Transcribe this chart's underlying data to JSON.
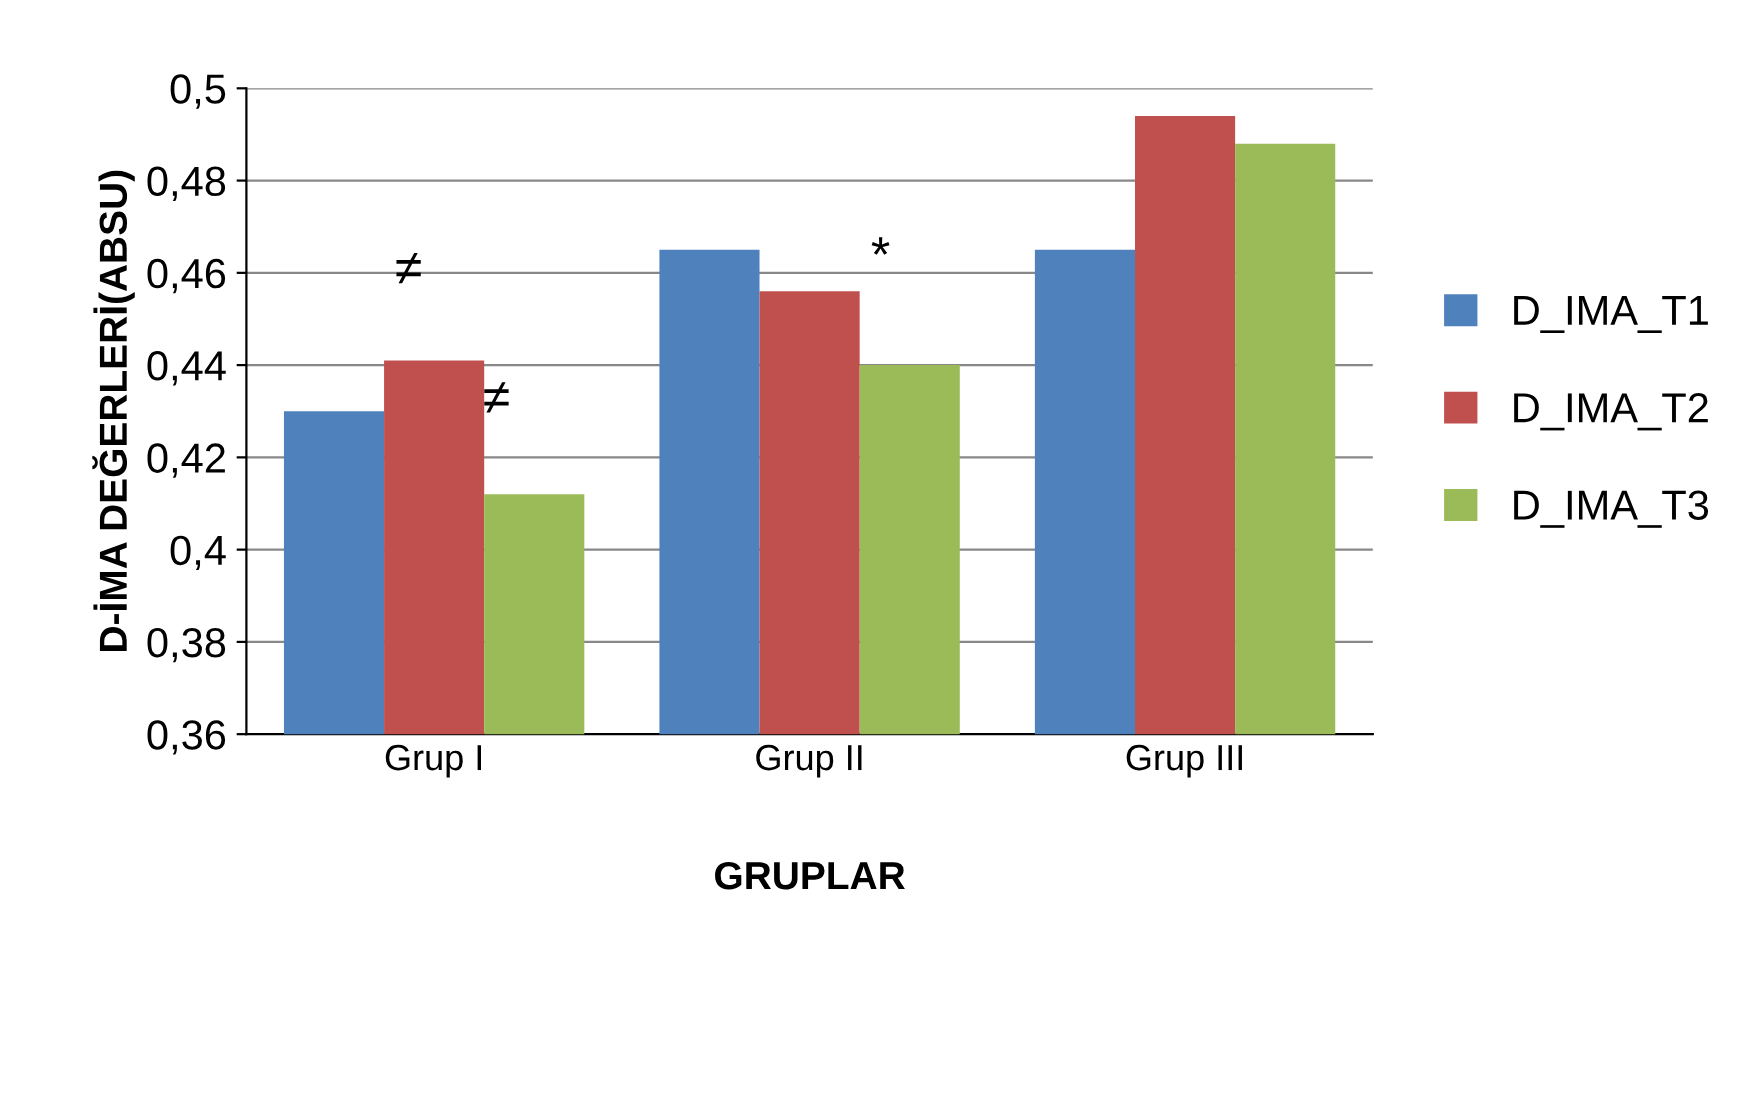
{
  "chart_data": {
    "type": "bar",
    "xlabel": "GRUPLAR",
    "ylabel": "D-İMA DEĞERLERİ(ABSU)",
    "categories": [
      "Grup I",
      "Grup II",
      "Grup III"
    ],
    "series": [
      {
        "name": "D_IMA_T1",
        "color": "#4f81bd",
        "values": [
          0.43,
          0.465,
          0.465
        ]
      },
      {
        "name": "D_IMA_T2",
        "color": "#c0504d",
        "values": [
          0.441,
          0.456,
          0.494
        ]
      },
      {
        "name": "D_IMA_T3",
        "color": "#9bbb59",
        "values": [
          0.412,
          0.44,
          0.488
        ]
      }
    ],
    "ylim": [
      0.36,
      0.5
    ],
    "yticks": [
      {
        "value": 0.36,
        "label": "0,36"
      },
      {
        "value": 0.38,
        "label": "0,38"
      },
      {
        "value": 0.4,
        "label": "0,4"
      },
      {
        "value": 0.42,
        "label": "0,42"
      },
      {
        "value": 0.44,
        "label": "0,44"
      },
      {
        "value": 0.46,
        "label": "0,46"
      },
      {
        "value": 0.48,
        "label": "0,48"
      },
      {
        "value": 0.5,
        "label": "0,5"
      }
    ],
    "grid": "y",
    "legend": "right",
    "annotations": [
      "≠",
      "≠",
      "*"
    ]
  }
}
